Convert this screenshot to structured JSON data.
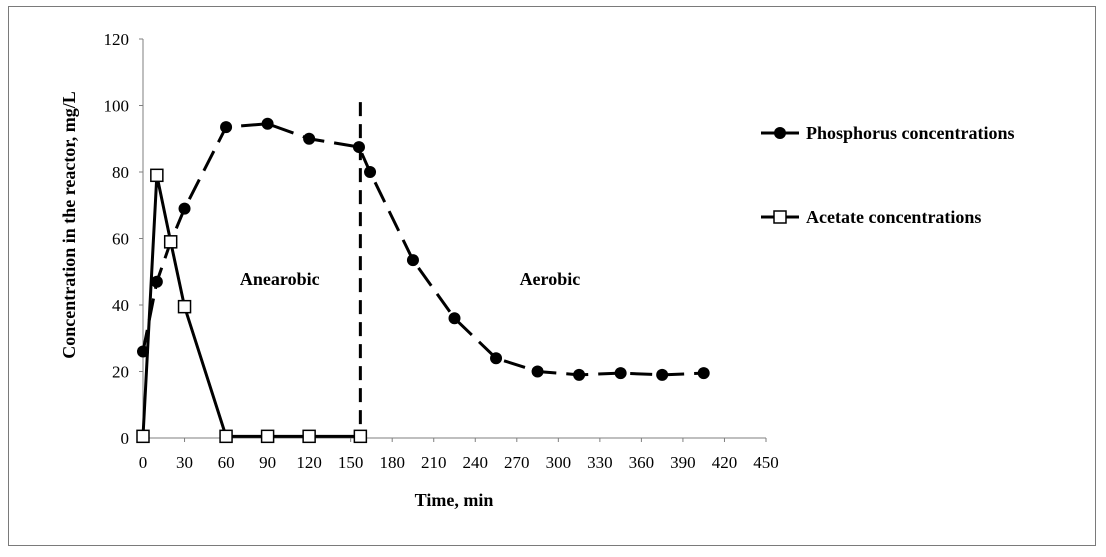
{
  "chart_data": {
    "type": "line",
    "xlabel": "Time, min",
    "ylabel": "Concentration in the reactor, mg/L",
    "xlim": [
      0,
      450
    ],
    "ylim": [
      0,
      120
    ],
    "x_ticks": [
      0,
      30,
      60,
      90,
      120,
      150,
      180,
      210,
      240,
      270,
      300,
      330,
      360,
      390,
      420,
      450
    ],
    "y_ticks": [
      0,
      20,
      40,
      60,
      80,
      100,
      120
    ],
    "grid": false,
    "legend_position": "right",
    "series": [
      {
        "name": "Phosphorus concentrations",
        "marker": "filled-circle",
        "line_style": "dashed",
        "color": "#000000",
        "points": [
          [
            0,
            26
          ],
          [
            10,
            47
          ],
          [
            20,
            59
          ],
          [
            30,
            69
          ],
          [
            60,
            93.5
          ],
          [
            90,
            94.5
          ],
          [
            120,
            90
          ],
          [
            156,
            87.5
          ],
          [
            164,
            80
          ],
          [
            195,
            53.5
          ],
          [
            225,
            36
          ],
          [
            255,
            24
          ],
          [
            285,
            20
          ],
          [
            315,
            19
          ],
          [
            345,
            19.5
          ],
          [
            375,
            19
          ],
          [
            405,
            19.5
          ]
        ]
      },
      {
        "name": "Acetate concentrations",
        "marker": "open-square",
        "line_style": "solid",
        "color": "#000000",
        "points": [
          [
            0,
            0.5
          ],
          [
            10,
            79
          ],
          [
            20,
            59
          ],
          [
            30,
            39.5
          ],
          [
            60,
            0.5
          ],
          [
            90,
            0.5
          ],
          [
            120,
            0.5
          ],
          [
            157,
            0.5
          ]
        ]
      }
    ],
    "divider": {
      "x": 157,
      "line_style": "dashed"
    },
    "annotations": [
      {
        "text": "Anearobic",
        "x": 70,
        "y": 46
      },
      {
        "text": "Aerobic",
        "x": 272,
        "y": 46
      }
    ]
  }
}
